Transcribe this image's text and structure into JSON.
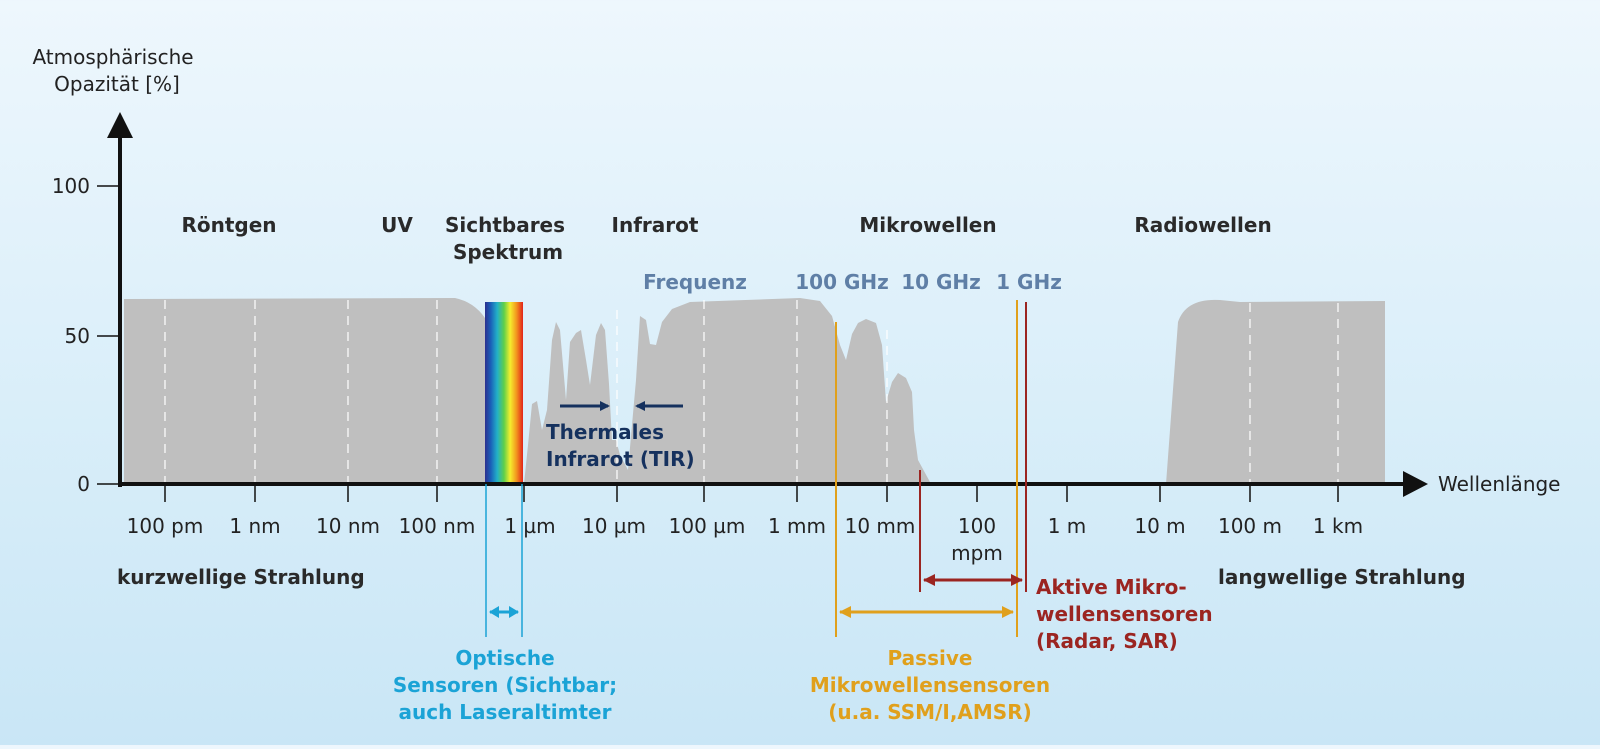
{
  "y_axis": {
    "label_line1": "Atmosphärische",
    "label_line2": "Opazität [%]",
    "ticks": [
      "100",
      "50",
      "0"
    ]
  },
  "x_axis": {
    "label": "Wellenlänge",
    "ticks": [
      "100 pm",
      "1 nm",
      "10 nm",
      "100 nm",
      "1 µm",
      "10 µm",
      "100 µm",
      "1 mm",
      "10 mm",
      "100",
      "1 m",
      "10 m",
      "100 m",
      "1 km"
    ],
    "tick_100mpm_second_line": "mpm"
  },
  "regions": {
    "xray": "Röntgen",
    "uv": "UV",
    "visible_line1": "Sichtbares",
    "visible_line2": "Spektrum",
    "infrared": "Infrarot",
    "microwave": "Mikrowellen",
    "radio": "Radiowellen"
  },
  "frequency": {
    "label": "Frequenz",
    "f100ghz": "100 GHz",
    "f10ghz": "10 GHz",
    "f1ghz": "1 GHz"
  },
  "tir": {
    "line1": "Thermales",
    "line2": "Infrarot (TIR)"
  },
  "ends": {
    "short": "kurzwellige Strahlung",
    "long": "langwellige Strahlung"
  },
  "sensors": {
    "optical": {
      "line1": "Optische",
      "line2": "Sensoren (Sichtbar;",
      "line3": "auch Laseraltimter"
    },
    "passive": {
      "line1": "Passive",
      "line2": "Mikrowellensensoren",
      "line3": "(u.a. SSM/I,AMSR)"
    },
    "active": {
      "line1": "Aktive Mikro-",
      "line2": "wellensensoren",
      "line3": "(Radar, SAR)"
    }
  },
  "colors": {
    "opacity_fill": "#bfbfbf",
    "axis": "#111111",
    "tir_arrow": "#15315e",
    "optical": "#1ba3d6",
    "passive": "#e0a01c",
    "active": "#9b2521",
    "frequency_text": "#5f7fa6"
  }
}
